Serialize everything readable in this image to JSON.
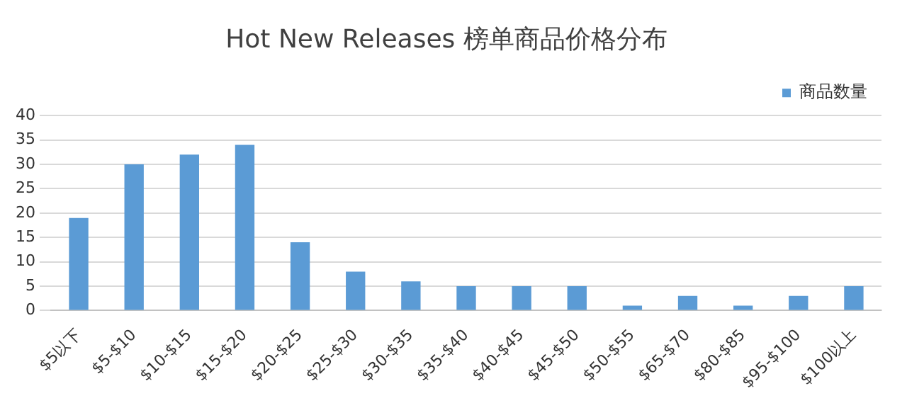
{
  "chart_data": {
    "type": "bar",
    "title": "Hot New Releases 榜单商品价格分布",
    "categories": [
      "$5以下",
      "$5-$10",
      "$10-$15",
      "$15-$20",
      "$20-$25",
      "$25-$30",
      "$30-$35",
      "$35-$40",
      "$40-$45",
      "$45-$50",
      "$50-$55",
      "$65-$70",
      "$80-$85",
      "$95-$100",
      "$100以上"
    ],
    "series": [
      {
        "name": "商品数量",
        "color": "#5b9bd5",
        "values": [
          19,
          30,
          32,
          34,
          14,
          8,
          6,
          5,
          5,
          5,
          1,
          3,
          1,
          3,
          5
        ]
      }
    ],
    "ylim": [
      0,
      40
    ],
    "yticks": [
      0,
      5,
      10,
      15,
      20,
      25,
      30,
      35,
      40
    ],
    "grid": "y",
    "legend": "top right"
  }
}
